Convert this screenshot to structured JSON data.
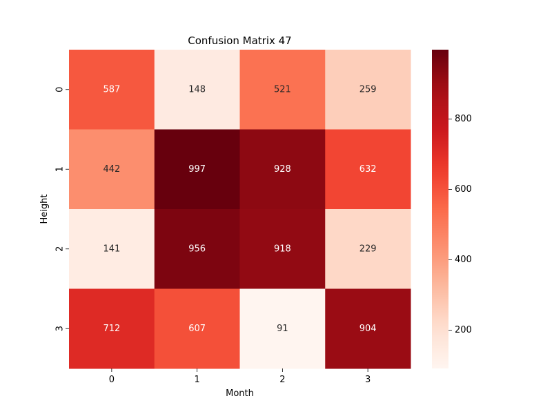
{
  "chart_data": {
    "type": "heatmap",
    "title": "Confusion Matrix 47",
    "xlabel": "Month",
    "ylabel": "Height",
    "x_categories": [
      "0",
      "1",
      "2",
      "3"
    ],
    "y_categories": [
      "0",
      "1",
      "2",
      "3"
    ],
    "values": [
      [
        587,
        148,
        521,
        259
      ],
      [
        442,
        997,
        928,
        632
      ],
      [
        141,
        956,
        918,
        229
      ],
      [
        712,
        607,
        91,
        904
      ]
    ],
    "colorscale": "Reds",
    "color_range": [
      91,
      997
    ],
    "colorbar_ticks": [
      200,
      400,
      600,
      800
    ],
    "grid": false
  }
}
